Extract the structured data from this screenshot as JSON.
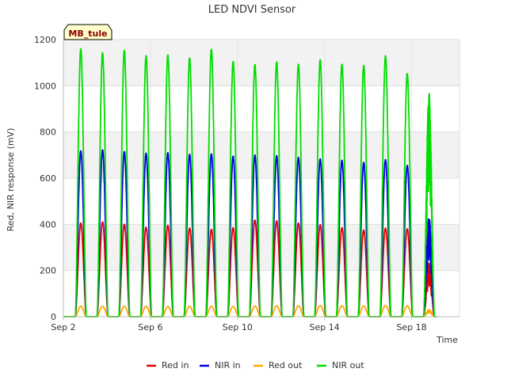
{
  "chart_data": {
    "type": "line",
    "title": "LED NDVI Sensor",
    "xlabel": "Time",
    "ylabel": "Red, NIR response (mV)",
    "site_label": "MB_tule",
    "x_tick_labels": [
      "Sep 2",
      "Sep 6",
      "Sep 10",
      "Sep 14",
      "Sep 18"
    ],
    "x_tick_days": [
      2,
      6,
      10,
      14,
      18
    ],
    "xlim_days": [
      2,
      20.2
    ],
    "ylim": [
      0,
      1200
    ],
    "y_ticks": [
      0,
      200,
      400,
      600,
      800,
      1000,
      1200
    ],
    "grid": true,
    "legend_position": "bottom",
    "day_peak_offset": 0.5,
    "day_peaks": [
      2.8,
      3.8,
      4.8,
      5.8,
      6.8,
      7.8,
      8.8,
      9.8,
      10.8,
      11.8,
      12.8,
      13.8,
      14.8,
      15.8,
      16.8,
      17.8,
      18.8
    ],
    "series": [
      {
        "name": "Red in",
        "color": "#e00000",
        "peaks": [
          405,
          410,
          400,
          387,
          395,
          383,
          378,
          385,
          418,
          415,
          405,
          398,
          385,
          375,
          383,
          380,
          235
        ]
      },
      {
        "name": "NIR in",
        "color": "#0000e0",
        "peaks": [
          718,
          722,
          715,
          708,
          710,
          703,
          705,
          695,
          700,
          697,
          690,
          683,
          677,
          668,
          680,
          655,
          435
        ]
      },
      {
        "name": "Red out",
        "color": "#ffa500",
        "peaks": [
          45,
          45,
          45,
          45,
          44,
          45,
          45,
          44,
          46,
          47,
          47,
          48,
          47,
          46,
          48,
          47,
          30
        ]
      },
      {
        "name": "NIR out",
        "color": "#00dd00",
        "peaks": [
          1160,
          1143,
          1153,
          1130,
          1133,
          1120,
          1158,
          1105,
          1092,
          1103,
          1093,
          1113,
          1093,
          1088,
          1130,
          1053,
          975
        ]
      }
    ]
  }
}
